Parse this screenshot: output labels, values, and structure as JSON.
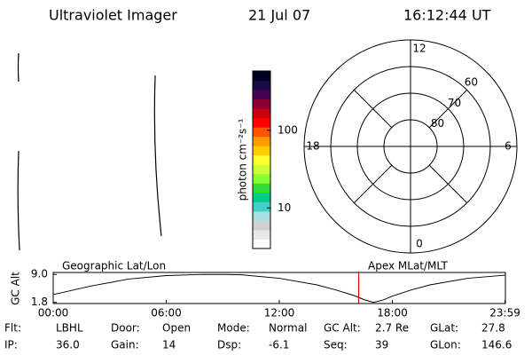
{
  "header": {
    "instrument": "Ultraviolet Imager",
    "date": "21 Jul 07",
    "time": "16:12:44 UT"
  },
  "colorbar": {
    "label": "photon cm⁻²s⁻¹",
    "scale": "log",
    "clim": [
      3,
      580
    ],
    "ticks": [
      10,
      100
    ],
    "colors": [
      "#ffffff",
      "#e8e8e8",
      "#d0d0d0",
      "#a8dede",
      "#40d0c8",
      "#00cc88",
      "#33dd33",
      "#88ff33",
      "#ccff33",
      "#ffff33",
      "#ffcc00",
      "#ff9900",
      "#ff5500",
      "#ff0000",
      "#c80010",
      "#8a0030",
      "#4a0050",
      "#1a0a4a",
      "#000022"
    ]
  },
  "polar": {
    "ring_labels": [
      60,
      70,
      80
    ],
    "mlt_labels": [
      12,
      18,
      6,
      0
    ]
  },
  "chart_data": {
    "type": "line",
    "ylabel": "GC Alt",
    "left_label": "Geographic Lat/Lon",
    "right_label": "Apex MLat/MLT",
    "x": [
      0,
      2,
      4,
      6,
      8,
      9,
      10,
      12,
      14,
      15,
      16,
      16.5,
      17,
      17.5,
      18,
      19,
      20,
      22,
      23.98
    ],
    "series": [
      {
        "name": "GC Alt",
        "color": "#000000",
        "values": [
          3.8,
          6.0,
          7.8,
          8.7,
          9.0,
          9.0,
          8.9,
          8.0,
          6.3,
          5.0,
          3.5,
          2.5,
          1.8,
          2.4,
          3.4,
          5.0,
          6.3,
          8.0,
          8.8
        ]
      }
    ],
    "marker_x": 16.212,
    "marker_color": "#dd0000",
    "xlim": [
      0,
      24
    ],
    "xticks": [
      {
        "value": 0,
        "label": "00:00"
      },
      {
        "value": 6,
        "label": "06:00"
      },
      {
        "value": 12,
        "label": "12:00"
      },
      {
        "value": 18,
        "label": "18:00"
      },
      {
        "value": 23.98,
        "label": "23:59"
      }
    ],
    "ylim": [
      1.5,
      9.5
    ],
    "yticks": [
      1.8,
      {
        "value": 9,
        "label": "9.0"
      }
    ]
  },
  "fields": [
    [
      {
        "label": "Flt:",
        "value": "LBHL"
      },
      {
        "label": "Door:",
        "value": "Open"
      },
      {
        "label": "Mode:",
        "value": "Normal"
      },
      {
        "label": "GC Alt:",
        "value": "2.7 Re"
      },
      {
        "label": "GLat:",
        "value": "27.8"
      }
    ],
    [
      {
        "label": "IP:",
        "value": "36.0"
      },
      {
        "label": "Gain:",
        "value": "14"
      },
      {
        "label": "Dsp:",
        "value": "-6.1"
      },
      {
        "label": "Seq:",
        "value": "39"
      },
      {
        "label": "GLon:",
        "value": "146.6"
      }
    ]
  ]
}
